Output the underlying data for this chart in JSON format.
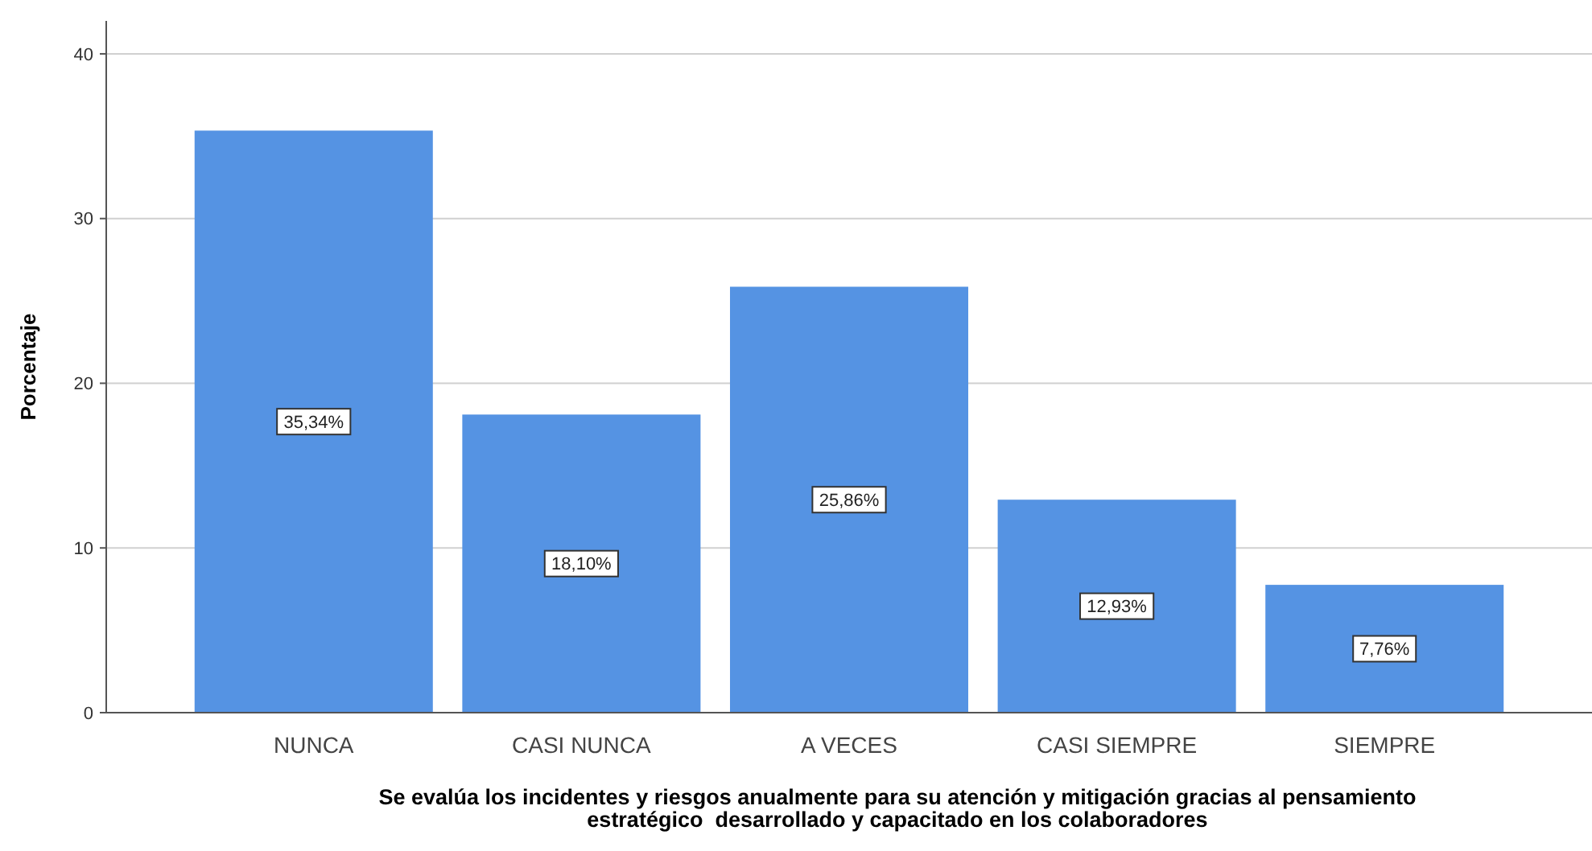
{
  "chart_data": {
    "type": "bar",
    "xlabel": "Se evalúa los incidentes y riesgos anualmente para su atención y mitigación gracias al pensamiento\nestratégico  desarrollado y capacitado en los colaboradores",
    "ylabel": "Porcentaje",
    "categories": [
      "NUNCA",
      "CASI NUNCA",
      "A VECES",
      "CASI SIEMPRE",
      "SIEMPRE"
    ],
    "values": [
      35.34,
      18.1,
      25.86,
      12.93,
      7.76
    ],
    "value_labels": [
      "35,34%",
      "18,10%",
      "25,86%",
      "12,93%",
      "7,76%"
    ],
    "color": "#5593e3",
    "ylim": [
      0,
      42
    ],
    "yticks": [
      0,
      10,
      20,
      30,
      40
    ],
    "grid": "y"
  }
}
